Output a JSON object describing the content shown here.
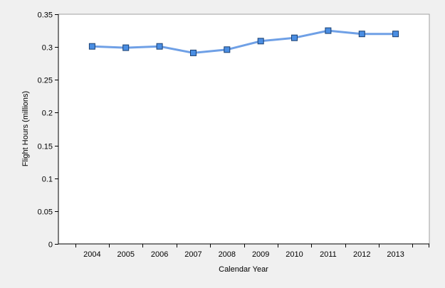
{
  "chart_data": {
    "type": "line",
    "title": "",
    "xlabel": "Calendar Year",
    "ylabel": "Flight Hours (millions)",
    "categories": [
      "2004",
      "2005",
      "2006",
      "2007",
      "2008",
      "2009",
      "2010",
      "2011",
      "2012",
      "2013"
    ],
    "series": [
      {
        "values": [
          0.301,
          0.299,
          0.301,
          0.291,
          0.296,
          0.309,
          0.314,
          0.325,
          0.32,
          0.32
        ],
        "line_color": "#6fa0e6",
        "marker": "square",
        "marker_fill": "#4a8ee3",
        "marker_edge": "#1a3f70"
      }
    ],
    "ylim": [
      0,
      0.35
    ],
    "yticks": [
      "0",
      "0.05",
      "0.1",
      "0.15",
      "0.2",
      "0.25",
      "0.3",
      "0.35"
    ],
    "grid": false,
    "legend": "none",
    "background_color": "#f0f0f0",
    "plot_background_color": "#ffffff"
  }
}
